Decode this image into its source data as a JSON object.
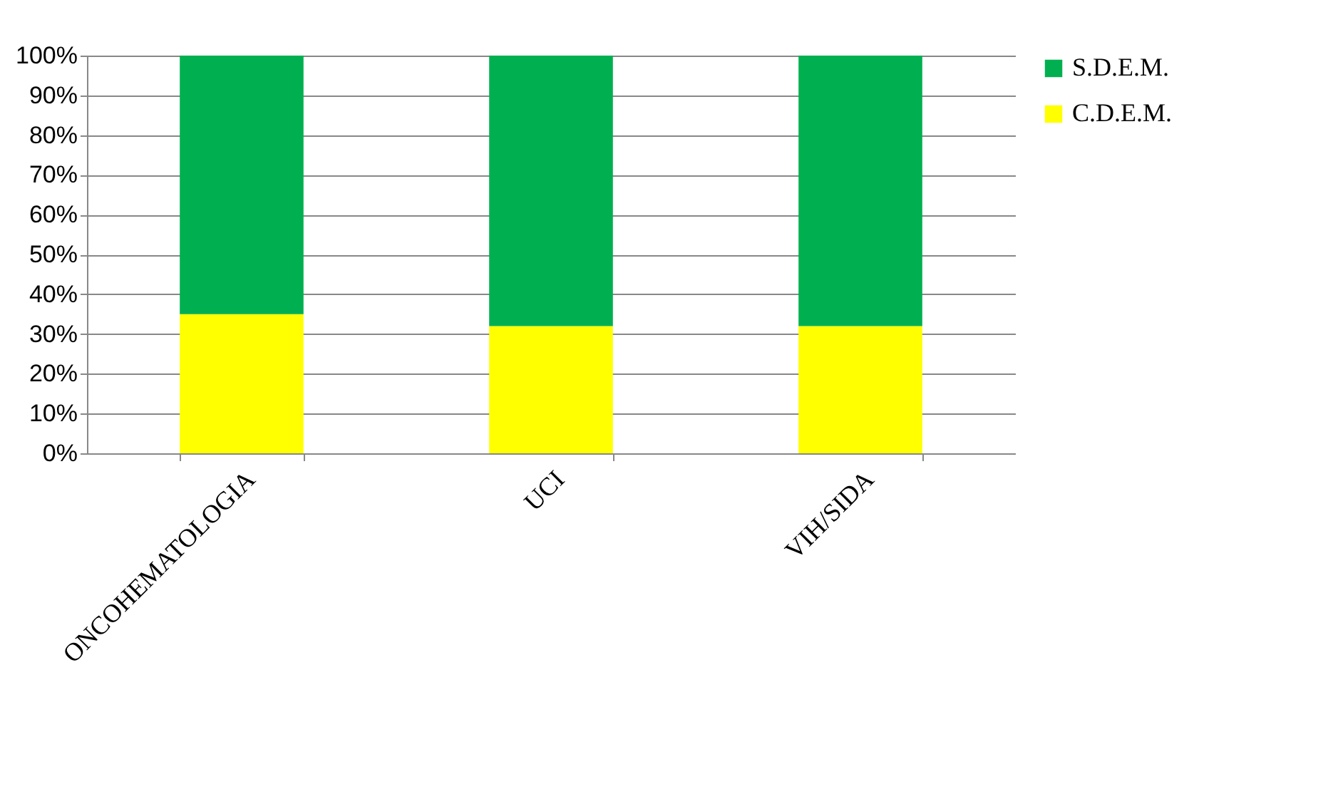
{
  "chart_data": {
    "type": "bar",
    "stacked": true,
    "categories": [
      "ONCOHEMATOLOGIA",
      "UCI",
      "VIH/SIDA"
    ],
    "series": [
      {
        "name": "C.D.E.M.",
        "color": "#ffff00",
        "values": [
          35,
          32,
          32
        ]
      },
      {
        "name": "S.D.E.M.",
        "color": "#00b050",
        "values": [
          65,
          68,
          68
        ]
      }
    ],
    "ylim": [
      0,
      100
    ],
    "yticks": [
      {
        "value": 0,
        "label": "0%"
      },
      {
        "value": 10,
        "label": "10%"
      },
      {
        "value": 20,
        "label": "20%"
      },
      {
        "value": 30,
        "label": "30%"
      },
      {
        "value": 40,
        "label": "40%"
      },
      {
        "value": 50,
        "label": "50%"
      },
      {
        "value": 60,
        "label": "60%"
      },
      {
        "value": 70,
        "label": "70%"
      },
      {
        "value": 80,
        "label": "80%"
      },
      {
        "value": 90,
        "label": "90%"
      },
      {
        "value": 100,
        "label": "100%"
      }
    ],
    "grid": "y",
    "legend": "right"
  }
}
